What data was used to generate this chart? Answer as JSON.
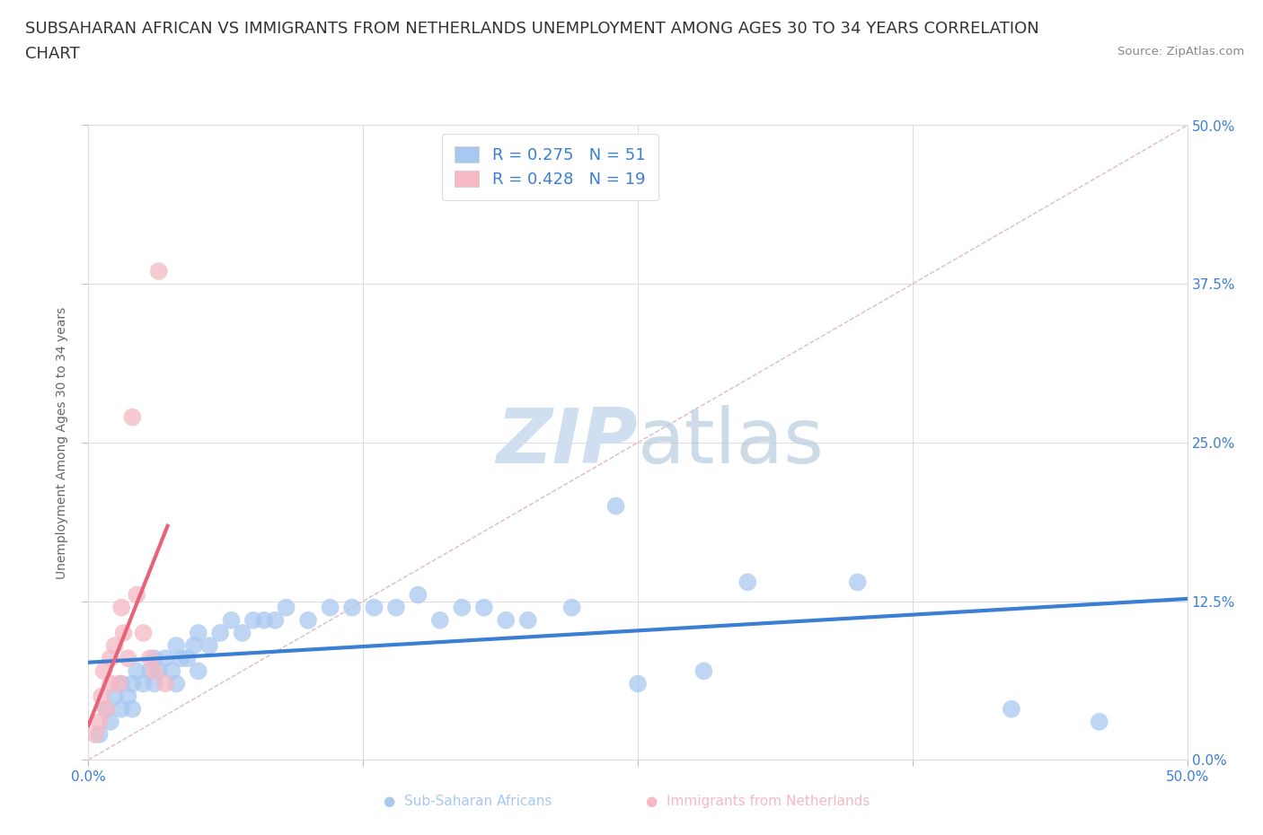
{
  "title_line1": "SUBSAHARAN AFRICAN VS IMMIGRANTS FROM NETHERLANDS UNEMPLOYMENT AMONG AGES 30 TO 34 YEARS CORRELATION",
  "title_line2": "CHART",
  "source": "Source: ZipAtlas.com",
  "ylabel": "Unemployment Among Ages 30 to 34 years",
  "xlim": [
    0.0,
    0.5
  ],
  "ylim": [
    0.0,
    0.5
  ],
  "ticks": [
    0.0,
    0.125,
    0.25,
    0.375,
    0.5
  ],
  "blue_r": 0.275,
  "blue_n": 51,
  "pink_r": 0.428,
  "pink_n": 19,
  "background_color": "#ffffff",
  "grid_color": "#dddddd",
  "blue_color": "#a8c8f0",
  "blue_line_color": "#3b7fd4",
  "pink_color": "#f5b8c4",
  "pink_line_color": "#e8637a",
  "diag_color": "#e0b8c8",
  "watermark": "ZIPatlas",
  "watermark_color": "#d0dff0",
  "title_fontsize": 13,
  "axis_label_fontsize": 10,
  "tick_fontsize": 11,
  "legend_fontsize": 13,
  "blue_scatter_x": [
    0.005,
    0.008,
    0.01,
    0.012,
    0.015,
    0.015,
    0.018,
    0.02,
    0.02,
    0.022,
    0.025,
    0.028,
    0.03,
    0.03,
    0.032,
    0.035,
    0.038,
    0.04,
    0.04,
    0.042,
    0.045,
    0.048,
    0.05,
    0.05,
    0.055,
    0.06,
    0.065,
    0.07,
    0.075,
    0.08,
    0.085,
    0.09,
    0.1,
    0.11,
    0.12,
    0.13,
    0.14,
    0.15,
    0.16,
    0.17,
    0.18,
    0.19,
    0.2,
    0.22,
    0.24,
    0.25,
    0.28,
    0.3,
    0.35,
    0.42,
    0.46
  ],
  "blue_scatter_y": [
    0.02,
    0.04,
    0.03,
    0.05,
    0.04,
    0.06,
    0.05,
    0.06,
    0.04,
    0.07,
    0.06,
    0.07,
    0.06,
    0.08,
    0.07,
    0.08,
    0.07,
    0.09,
    0.06,
    0.08,
    0.08,
    0.09,
    0.1,
    0.07,
    0.09,
    0.1,
    0.11,
    0.1,
    0.11,
    0.11,
    0.11,
    0.12,
    0.11,
    0.12,
    0.12,
    0.12,
    0.12,
    0.13,
    0.11,
    0.12,
    0.12,
    0.11,
    0.11,
    0.12,
    0.2,
    0.06,
    0.07,
    0.14,
    0.14,
    0.04,
    0.03
  ],
  "pink_scatter_x": [
    0.003,
    0.005,
    0.006,
    0.007,
    0.008,
    0.01,
    0.01,
    0.012,
    0.014,
    0.015,
    0.016,
    0.018,
    0.02,
    0.022,
    0.025,
    0.028,
    0.03,
    0.032,
    0.035
  ],
  "pink_scatter_y": [
    0.02,
    0.03,
    0.05,
    0.07,
    0.04,
    0.06,
    0.08,
    0.09,
    0.06,
    0.12,
    0.1,
    0.08,
    0.27,
    0.13,
    0.1,
    0.08,
    0.07,
    0.385,
    0.06
  ]
}
